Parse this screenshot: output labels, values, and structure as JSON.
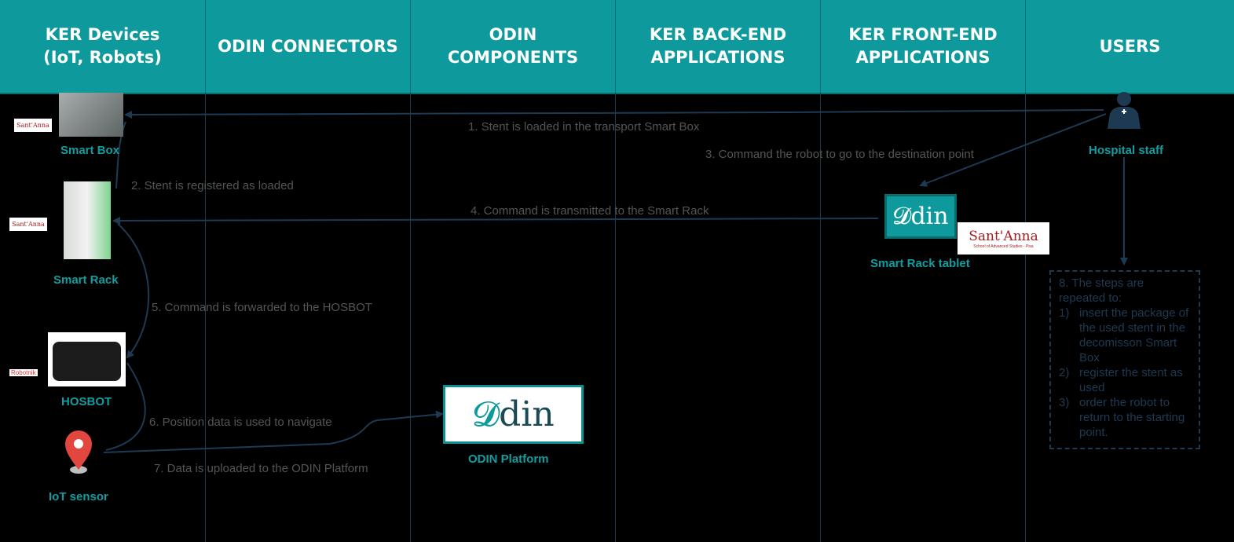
{
  "columns": [
    {
      "line1": "KER Devices",
      "line2": "(IoT, Robots)"
    },
    {
      "line1": "ODIN CONNECTORS",
      "line2": ""
    },
    {
      "line1": "ODIN",
      "line2": "COMPONENTS"
    },
    {
      "line1": "KER BACK-END",
      "line2": "APPLICATIONS"
    },
    {
      "line1": "KER FRONT-END",
      "line2": "APPLICATIONS"
    },
    {
      "line1": "USERS",
      "line2": ""
    }
  ],
  "nodes": {
    "smart_box": "Smart Box",
    "smart_rack": "Smart Rack",
    "hosbot": "HOSBOT",
    "iot_sensor": "IoT sensor",
    "odin_platform": "ODIN Platform",
    "smart_rack_tablet": "Smart Rack tablet",
    "hospital_staff": "Hospital staff"
  },
  "steps": {
    "s1": "1. Stent is loaded in the transport Smart Box",
    "s2": "2. Stent is registered as loaded",
    "s3": "3. Command the robot to go to the destination point",
    "s4": "4. Command is transmitted to the Smart Rack",
    "s5": "5. Command is forwarded to the HOSBOT",
    "s6": "6. Position data is used to navigate",
    "s7": "7. Data is uploaded to the ODIN Platform"
  },
  "note": {
    "intro": "8. The steps are repeated to:",
    "items": [
      {
        "n": "1)",
        "text": "insert the package of the used stent in the decomisson Smart Box"
      },
      {
        "n": "2)",
        "text": "register the stent as used"
      },
      {
        "n": "3)",
        "text": "order the robot to return to the starting point."
      }
    ]
  },
  "logos": {
    "santanna": "Sant'Anna",
    "santanna_sub": "School of Advanced Studies - Pisa",
    "robotnik": "Robotnik",
    "odin": "din"
  },
  "colors": {
    "header": "#0e9a9c",
    "teal_text": "#119ea1",
    "arrow": "#1e3a52"
  }
}
